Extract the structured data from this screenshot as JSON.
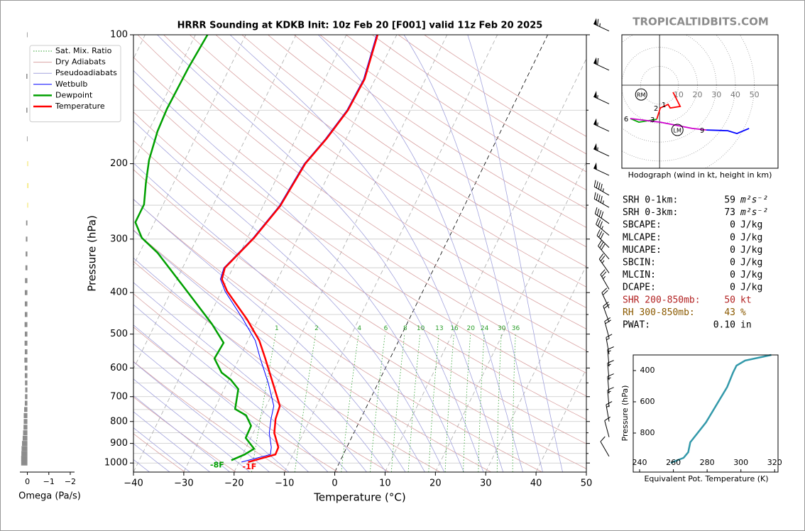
{
  "watermark": "TROPICALTIDBITS.COM",
  "chart_data": [
    {
      "type": "skewt",
      "title": "HRRR Sounding at KDKB Init: 10z Feb 20 [F001] valid 11z Feb 20 2025",
      "x_label": "Temperature (°C)",
      "y_label": "Pressure (hPa)",
      "xlim": [
        -40,
        50
      ],
      "ylim": [
        1050,
        100
      ],
      "log_y": true,
      "xticks": [
        {
          "value": -40,
          "label": "−40"
        },
        {
          "value": -30,
          "label": "−30"
        },
        {
          "value": -20,
          "label": "−20"
        },
        {
          "value": -10,
          "label": "−10"
        },
        0,
        10,
        20,
        30,
        40,
        50
      ],
      "yticks": [
        100,
        200,
        300,
        400,
        500,
        600,
        700,
        800,
        900,
        1000
      ],
      "minor_yticks": [
        150,
        250,
        350,
        450,
        550,
        650,
        750,
        850,
        950
      ],
      "grid": true,
      "legend": "upper left",
      "reference_lines": [
        {
          "name": "Sat. Mix. Ratio",
          "color": "#2ca02c",
          "labels": [
            1,
            2,
            4,
            6,
            8,
            10,
            13,
            16,
            20,
            24,
            30,
            36
          ]
        },
        {
          "name": "Dry Adiabats",
          "color": "#d9a3a3"
        },
        {
          "name": "Pseudoadiabats",
          "color": "#a3a3dd"
        }
      ],
      "series": [
        {
          "name": "Wetbulb",
          "color": "#0000ff",
          "width": 1,
          "pressure": [
            995,
            955,
            919,
            851,
            789,
            736,
            651,
            570,
            518,
            462,
            397,
            372,
            350,
            298,
            251,
            200,
            175,
            150,
            127,
            100
          ],
          "values": [
            -19.5,
            -14.5,
            -15,
            -16.8,
            -17.8,
            -18.5,
            -21.8,
            -25.8,
            -28.5,
            -33,
            -39.3,
            -41.4,
            -41.8,
            -38.9,
            -36.8,
            -35.9,
            -34.1,
            -32.6,
            -32.3,
            -34
          ]
        },
        {
          "name": "Dewpoint",
          "color": "#00a000",
          "width": 2.5,
          "surface_label": "-8F",
          "pressure": [
            985,
            955,
            926,
            874,
            819,
            774,
            748,
            672,
            639,
            615,
            570,
            524,
            474,
            445,
            400,
            323,
            298,
            274,
            249,
            222,
            196,
            168,
            149,
            119,
            100
          ],
          "values": [
            -21.7,
            -19.6,
            -18.3,
            -21,
            -21.1,
            -23.1,
            -25.9,
            -27.2,
            -29.6,
            -32.1,
            -34.9,
            -34.6,
            -38.7,
            -41.6,
            -46.5,
            -56.4,
            -61,
            -63.8,
            -63.8,
            -65.5,
            -67.1,
            -68.2,
            -68.5,
            -68.2,
            -67.6
          ]
        },
        {
          "name": "Temperature",
          "color": "#ff0000",
          "width": 2.5,
          "surface_label": "-1F",
          "pressure": [
            995,
            955,
            919,
            851,
            789,
            736,
            651,
            570,
            518,
            462,
            397,
            372,
            350,
            298,
            251,
            200,
            175,
            150,
            127,
            100
          ],
          "values": [
            -18.2,
            -13.5,
            -13.6,
            -15.8,
            -16.9,
            -17.3,
            -20.9,
            -24.8,
            -27.7,
            -32.2,
            -38.9,
            -41.1,
            -41.6,
            -38.7,
            -36.6,
            -35.7,
            -33.9,
            -32.4,
            -32.1,
            -33.8
          ]
        }
      ],
      "winds": {
        "pressure": [
          98,
          121,
          145,
          168,
          192,
          213,
          237,
          253,
          276,
          294,
          314,
          334,
          360,
          393,
          435,
          469,
          510,
          557,
          595,
          640,
          688,
          740,
          800,
          870,
          965
        ],
        "speed": [
          65,
          60,
          55,
          55,
          55,
          50,
          45,
          45,
          40,
          35,
          30,
          30,
          25,
          25,
          20,
          20,
          20,
          15,
          15,
          15,
          15,
          15,
          15,
          10,
          10
        ],
        "direction": [
          295,
          295,
          295,
          295,
          295,
          295,
          300,
          300,
          305,
          310,
          315,
          320,
          325,
          330,
          335,
          340,
          345,
          350,
          355,
          355,
          355,
          355,
          350,
          345,
          330
        ]
      }
    },
    {
      "type": "bar",
      "orientation": "horizontal",
      "x_label": "Omega (Pa/s)",
      "xlim": [
        0.35,
        -2.2
      ],
      "xticks": [
        0,
        {
          "value": -1,
          "label": "−1"
        },
        {
          "value": -2,
          "label": "−2"
        }
      ],
      "ylim": [
        1050,
        100
      ],
      "log_y": true,
      "color": "#8c8c8c",
      "negative_color": "#f2e04a",
      "pressure": [
        100,
        125,
        150,
        175,
        200,
        225,
        250,
        275,
        300,
        325,
        350,
        375,
        400,
        425,
        450,
        475,
        500,
        525,
        550,
        575,
        600,
        625,
        650,
        675,
        700,
        725,
        750,
        775,
        800,
        825,
        850,
        875,
        900,
        925,
        950,
        975,
        1000
      ],
      "values": [
        0.02,
        0.05,
        0.05,
        0.02,
        -0.03,
        -0.04,
        -0.03,
        0.06,
        0.07,
        0.08,
        0.09,
        0.11,
        0.12,
        0.12,
        0.12,
        0.13,
        0.12,
        0.13,
        0.12,
        0.14,
        0.12,
        0.12,
        0.11,
        0.1,
        0.11,
        0.12,
        0.15,
        0.17,
        0.17,
        0.18,
        0.2,
        0.22,
        0.25,
        0.27,
        0.28,
        0.29,
        0.29
      ]
    },
    {
      "type": "hodograph",
      "caption": "Hodograph (wind in kt, height in km)",
      "xlim": [
        -19.9,
        62.5
      ],
      "ylim": [
        -43.8,
        26.6
      ],
      "rings": [
        10,
        20,
        30,
        40,
        50
      ],
      "series": [
        {
          "color": "#ff0000",
          "u": [
            7.1,
            10.9,
            5.6,
            4.5,
            0.4,
            -1.5
          ],
          "v": [
            -3.7,
            -11.2,
            -12,
            -10.1,
            -12,
            -18
          ],
          "km": [
            null,
            null,
            null,
            1,
            2,
            3
          ]
        },
        {
          "color": "#00aa00",
          "u": [
            -1.5,
            -10.9,
            -15.4
          ],
          "v": [
            -18,
            -19.5,
            -17.6
          ],
          "km": [
            null,
            null,
            6
          ]
        },
        {
          "color": "#cc00cc",
          "u": [
            -15.4,
            0.4,
            17.2,
            24.7
          ],
          "v": [
            -17.6,
            -19.5,
            -22.8,
            -23.6
          ],
          "km": [
            null,
            null,
            null,
            9
          ]
        },
        {
          "color": "#0000ff",
          "u": [
            24.7,
            36,
            40.8,
            47.2
          ],
          "v": [
            -23.6,
            -24,
            -25.5,
            -22.8
          ],
          "km": [
            null,
            null,
            null,
            null
          ]
        }
      ],
      "storm_motion": [
        {
          "label": "RM",
          "u": -9.7,
          "v": -4.9
        },
        {
          "label": "LM",
          "u": 9.4,
          "v": -23.6
        }
      ]
    },
    {
      "type": "line",
      "x_label": "Equivalent Pot. Temperature (K)",
      "y_label": "Pressure (hPa)",
      "xlim": [
        236.2,
        322
      ],
      "xticks": [
        240,
        260,
        280,
        300,
        320
      ],
      "ylim": [
        1050,
        300
      ],
      "yticks": [
        400,
        600,
        800
      ],
      "color": "#3399aa",
      "pressure": [
        300,
        336,
        368,
        414,
        505,
        618,
        732,
        859,
        923,
        959,
        991
      ],
      "values": [
        318,
        302.5,
        297.4,
        295.3,
        291.9,
        285.6,
        279.3,
        270,
        268.8,
        266,
        258.4
      ]
    }
  ],
  "stats": [
    {
      "label": "SRH 0-1km:",
      "value": 59,
      "unit": "m²s⁻²"
    },
    {
      "label": "SRH 0-3km:",
      "value": 73,
      "unit": "m²s⁻²"
    },
    {
      "label": "SBCAPE:",
      "value": 0,
      "unit": "J/kg"
    },
    {
      "label": "MLCAPE:",
      "value": 0,
      "unit": "J/kg"
    },
    {
      "label": "MUCAPE:",
      "value": 0,
      "unit": "J/kg"
    },
    {
      "label": "SBCIN:",
      "value": 0,
      "unit": "J/kg"
    },
    {
      "label": "MLCIN:",
      "value": 0,
      "unit": "J/kg"
    },
    {
      "label": "DCAPE:",
      "value": 0,
      "unit": "J/kg"
    },
    {
      "label": "SHR 200-850mb:",
      "value": 50,
      "unit": "kt",
      "color": "#b22222"
    },
    {
      "label": "RH 300-850mb:",
      "value": 43,
      "unit": "%",
      "color": "#8b5a00"
    },
    {
      "label": "PWAT:",
      "value": 0.1,
      "value_label": "0.10",
      "unit": "in"
    }
  ]
}
